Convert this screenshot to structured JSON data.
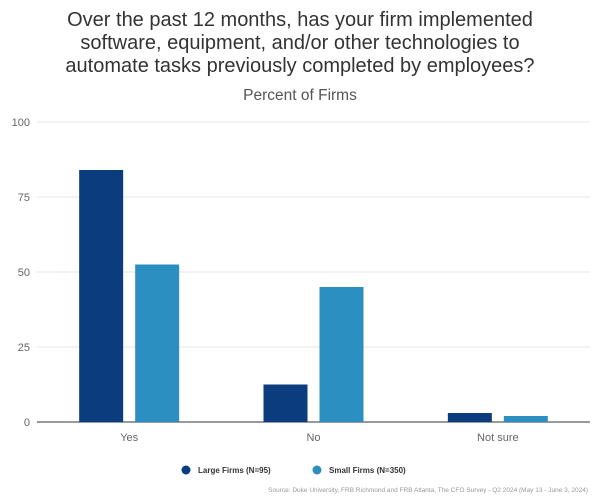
{
  "title_lines": [
    "Over the past 12 months, has your firm implemented",
    "software, equipment, and/or other technologies to",
    "automate tasks previously completed by employees?"
  ],
  "subtitle": "Percent of Firms",
  "source": "Source: Duke University, FRB Richmond and FRB Atlanta, The CFO Survey - Q2 2024 (May 13 - June 3, 2024)",
  "chart_data": {
    "type": "bar",
    "title": "Over the past 12 months, has your firm implemented software, equipment, and/or other technologies to automate tasks previously completed by employees?",
    "subtitle": "Percent of Firms",
    "categories": [
      "Yes",
      "No",
      "Not sure"
    ],
    "series": [
      {
        "name": "Large Firms (N=95)",
        "values": [
          84,
          12.5,
          3
        ],
        "color": "#0b3d7e"
      },
      {
        "name": "Small Firms (N=350)",
        "values": [
          52.5,
          45,
          2
        ],
        "color": "#2b8fc2"
      }
    ],
    "yticks": [
      0,
      25,
      50,
      75,
      100
    ],
    "ylim": [
      0,
      100
    ],
    "grid": true,
    "legend_position": "bottom"
  }
}
